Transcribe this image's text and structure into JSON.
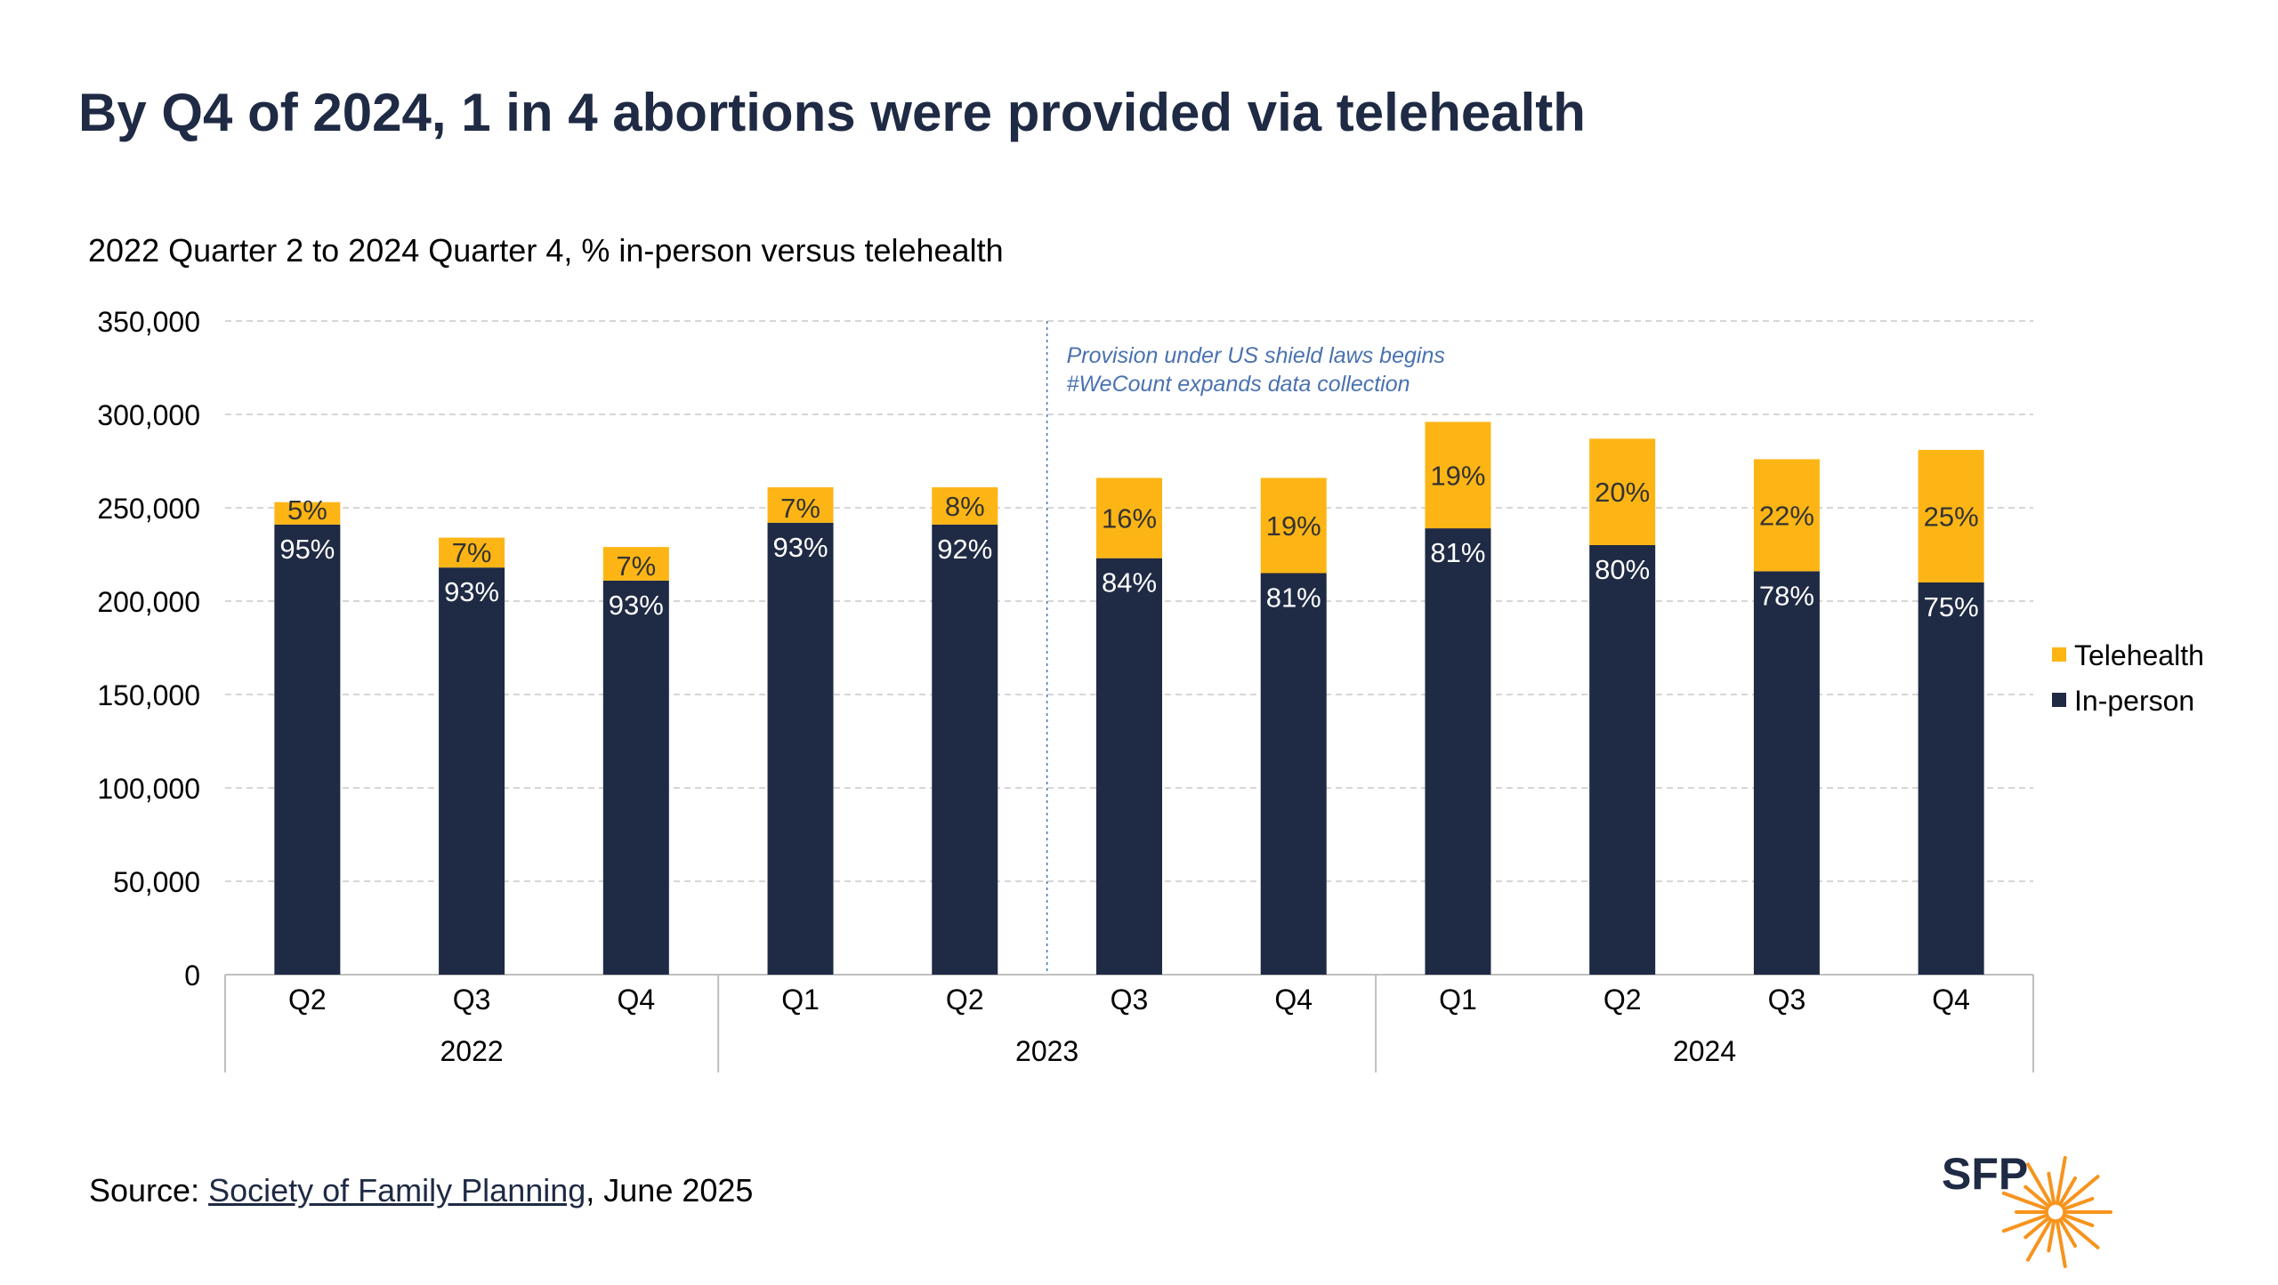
{
  "title": "By Q4 of 2024, 1 in 4 abortions were provided via telehealth",
  "subtitle": "2022 Quarter 2 to 2024 Quarter 4, % in-person versus telehealth",
  "source": {
    "prefix": "Source: ",
    "link_text": "Society of Family Planning",
    "suffix": ", June 2025"
  },
  "logo": {
    "text": "SFP",
    "icon": "starburst-icon"
  },
  "colors": {
    "in_person": "#1f2a44",
    "telehealth": "#fdb515",
    "annotation": "#4a72b0",
    "grid": "#c8c8c8"
  },
  "chart_data": {
    "type": "bar",
    "stacked": true,
    "categories": [
      "Q2",
      "Q3",
      "Q4",
      "Q1",
      "Q2",
      "Q3",
      "Q4",
      "Q1",
      "Q2",
      "Q3",
      "Q4"
    ],
    "groups": [
      {
        "label": "2022",
        "count": 3
      },
      {
        "label": "2023",
        "count": 4
      },
      {
        "label": "2024",
        "count": 4
      }
    ],
    "series": [
      {
        "name": "In-person",
        "values": [
          241000,
          218000,
          211000,
          242000,
          241000,
          223000,
          215000,
          239000,
          230000,
          216000,
          210000
        ],
        "labels": [
          "95%",
          "93%",
          "93%",
          "93%",
          "92%",
          "84%",
          "81%",
          "81%",
          "80%",
          "78%",
          "75%"
        ]
      },
      {
        "name": "Telehealth",
        "values": [
          12000,
          16000,
          18000,
          19000,
          20000,
          43000,
          51000,
          57000,
          57000,
          60000,
          71000
        ],
        "labels": [
          "5%",
          "7%",
          "7%",
          "7%",
          "8%",
          "16%",
          "19%",
          "19%",
          "20%",
          "22%",
          "25%"
        ]
      }
    ],
    "ylim": [
      0,
      350000
    ],
    "yticks": [
      "0",
      "50,000",
      "100,000",
      "150,000",
      "200,000",
      "250,000",
      "300,000",
      "350,000"
    ],
    "grid": true,
    "legend": "right",
    "annotation": {
      "after_index": 4,
      "lines": [
        "Provision under US shield laws begins",
        "#WeCount expands data collection"
      ]
    }
  }
}
